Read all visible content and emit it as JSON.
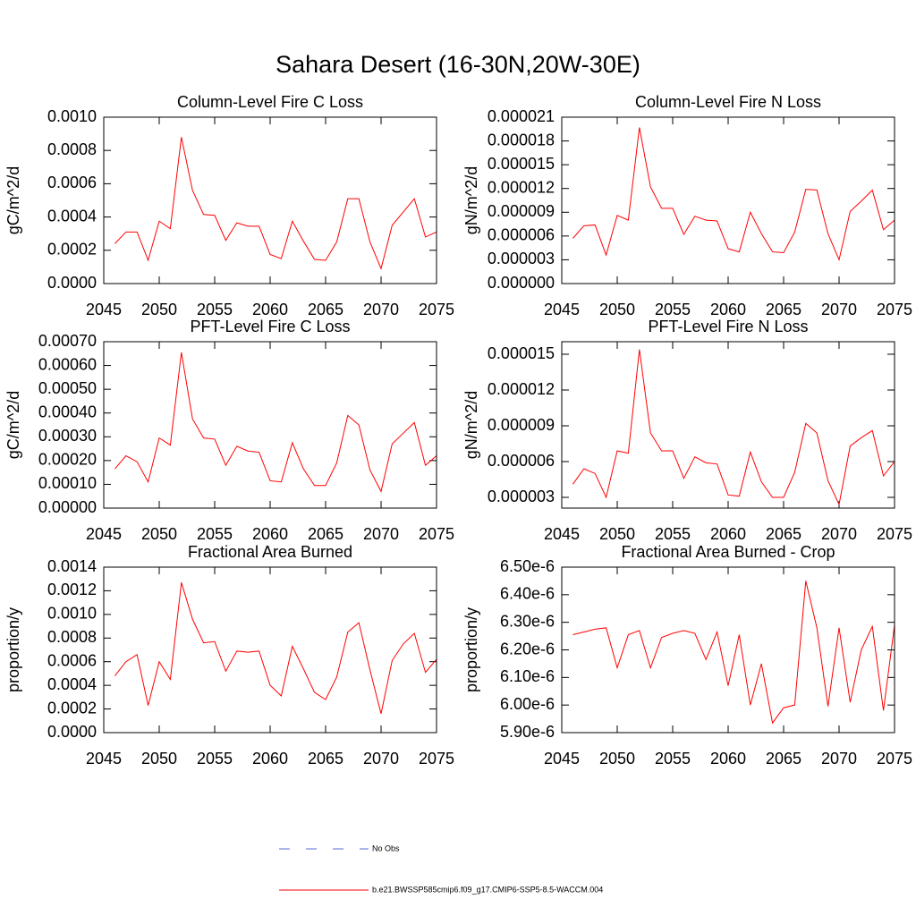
{
  "title": "Sahara Desert (16-30N,20W-30E)",
  "legend": [
    {
      "name": "No Obs",
      "color": "#5a6fd0",
      "dashed": true
    },
    {
      "name": "b.e21.BWSSP585cmip6.f09_g17.CMIP6-SSP5-8.5-WACCM.004",
      "color": "#ff0000",
      "dashed": false
    }
  ],
  "chart_data": [
    {
      "type": "line",
      "title": "Column-Level Fire C Loss",
      "ylabel": "gC/m^2/d",
      "color": "#ff0000",
      "x": [
        2046,
        2047,
        2048,
        2049,
        2050,
        2051,
        2052,
        2053,
        2054,
        2055,
        2056,
        2057,
        2058,
        2059,
        2060,
        2061,
        2062,
        2063,
        2064,
        2065,
        2066,
        2067,
        2068,
        2069,
        2070,
        2071,
        2072,
        2073,
        2074,
        2075
      ],
      "values": [
        0.00024,
        0.00031,
        0.00031,
        0.00014,
        0.000375,
        0.00033,
        0.00088,
        0.00056,
        0.000415,
        0.00041,
        0.00026,
        0.000365,
        0.000345,
        0.000345,
        0.000175,
        0.00015,
        0.000375,
        0.000255,
        0.000145,
        0.00014,
        0.00025,
        0.00051,
        0.00051,
        0.00025,
        9e-05,
        0.00035,
        0.00043,
        0.00051,
        0.00028,
        0.00031
      ],
      "xlim": [
        2045,
        2075
      ],
      "xticks": [
        2045,
        2050,
        2055,
        2060,
        2065,
        2070,
        2075
      ],
      "ylim": [
        0,
        0.001
      ],
      "yticks": [
        {
          "value": 0,
          "label": "0.0000"
        },
        {
          "value": 0.0002,
          "label": "0.0002"
        },
        {
          "value": 0.0004,
          "label": "0.0004"
        },
        {
          "value": 0.0006,
          "label": "0.0006"
        },
        {
          "value": 0.0008,
          "label": "0.0008"
        },
        {
          "value": 0.001,
          "label": "0.0010"
        }
      ]
    },
    {
      "type": "line",
      "title": "Column-Level Fire N Loss",
      "ylabel": "gN/m^2/d",
      "color": "#ff0000",
      "x": [
        2046,
        2047,
        2048,
        2049,
        2050,
        2051,
        2052,
        2053,
        2054,
        2055,
        2056,
        2057,
        2058,
        2059,
        2060,
        2061,
        2062,
        2063,
        2064,
        2065,
        2066,
        2067,
        2068,
        2069,
        2070,
        2071,
        2072,
        2073,
        2074,
        2075
      ],
      "values": [
        5.7e-06,
        7.3e-06,
        7.4e-06,
        3.6e-06,
        8.6e-06,
        8e-06,
        1.97e-05,
        1.22e-05,
        9.5e-06,
        9.5e-06,
        6.2e-06,
        8.5e-06,
        8e-06,
        7.9e-06,
        4.4e-06,
        4e-06,
        9e-06,
        6.3e-06,
        4e-06,
        3.9e-06,
        6.5e-06,
        1.19e-05,
        1.18e-05,
        6.3e-06,
        3e-06,
        9.1e-06,
        1.04e-05,
        1.18e-05,
        6.8e-06,
        8e-06
      ],
      "xlim": [
        2045,
        2075
      ],
      "xticks": [
        2045,
        2050,
        2055,
        2060,
        2065,
        2070,
        2075
      ],
      "ylim": [
        0,
        2.1e-05
      ],
      "yticks": [
        {
          "value": 0,
          "label": "0.000000"
        },
        {
          "value": 3e-06,
          "label": "0.000003"
        },
        {
          "value": 6e-06,
          "label": "0.000006"
        },
        {
          "value": 9e-06,
          "label": "0.000009"
        },
        {
          "value": 1.2e-05,
          "label": "0.000012"
        },
        {
          "value": 1.5e-05,
          "label": "0.000015"
        },
        {
          "value": 1.8e-05,
          "label": "0.000018"
        },
        {
          "value": 2.1e-05,
          "label": "0.000021"
        }
      ]
    },
    {
      "type": "line",
      "title": "PFT-Level Fire C Loss",
      "ylabel": "gC/m^2/d",
      "color": "#ff0000",
      "x": [
        2046,
        2047,
        2048,
        2049,
        2050,
        2051,
        2052,
        2053,
        2054,
        2055,
        2056,
        2057,
        2058,
        2059,
        2060,
        2061,
        2062,
        2063,
        2064,
        2065,
        2066,
        2067,
        2068,
        2069,
        2070,
        2071,
        2072,
        2073,
        2074,
        2075
      ],
      "values": [
        0.000165,
        0.00022,
        0.000195,
        0.00011,
        0.000295,
        0.000265,
        0.000655,
        0.000375,
        0.000295,
        0.00029,
        0.00018,
        0.00026,
        0.00024,
        0.000235,
        0.000115,
        0.00011,
        0.000275,
        0.000165,
        9.5e-05,
        9.5e-05,
        0.00019,
        0.00039,
        0.00035,
        0.00016,
        7e-05,
        0.00027,
        0.000315,
        0.00036,
        0.00018,
        0.00022
      ],
      "xlim": [
        2045,
        2075
      ],
      "xticks": [
        2045,
        2050,
        2055,
        2060,
        2065,
        2070,
        2075
      ],
      "ylim": [
        0,
        0.0007
      ],
      "yticks": [
        {
          "value": 0,
          "label": "0.00000"
        },
        {
          "value": 0.0001,
          "label": "0.00010"
        },
        {
          "value": 0.0002,
          "label": "0.00020"
        },
        {
          "value": 0.0003,
          "label": "0.00030"
        },
        {
          "value": 0.0004,
          "label": "0.00040"
        },
        {
          "value": 0.0005,
          "label": "0.00050"
        },
        {
          "value": 0.0006,
          "label": "0.00060"
        },
        {
          "value": 0.0007,
          "label": "0.00070"
        }
      ]
    },
    {
      "type": "line",
      "title": "PFT-Level Fire N Loss",
      "ylabel": "gN/m^2/d",
      "color": "#ff0000",
      "x": [
        2046,
        2047,
        2048,
        2049,
        2050,
        2051,
        2052,
        2053,
        2054,
        2055,
        2056,
        2057,
        2058,
        2059,
        2060,
        2061,
        2062,
        2063,
        2064,
        2065,
        2066,
        2067,
        2068,
        2069,
        2070,
        2071,
        2072,
        2073,
        2074,
        2075
      ],
      "values": [
        4.1e-06,
        5.4e-06,
        5e-06,
        3e-06,
        6.9e-06,
        6.7e-06,
        1.54e-05,
        8.4e-06,
        6.9e-06,
        6.9e-06,
        4.6e-06,
        6.4e-06,
        5.9e-06,
        5.8e-06,
        3.2e-06,
        3.1e-06,
        6.8e-06,
        4.3e-06,
        3e-06,
        3e-06,
        5.1e-06,
        9.2e-06,
        8.4e-06,
        4.4e-06,
        2.4e-06,
        7.3e-06,
        8e-06,
        8.6e-06,
        4.8e-06,
        6e-06
      ],
      "xlim": [
        2045,
        2075
      ],
      "xticks": [
        2045,
        2050,
        2055,
        2060,
        2065,
        2070,
        2075
      ],
      "ylim": [
        2.1e-06,
        1.605e-05
      ],
      "yticks": [
        {
          "value": 3e-06,
          "label": "0.000003"
        },
        {
          "value": 6e-06,
          "label": "0.000006"
        },
        {
          "value": 9e-06,
          "label": "0.000009"
        },
        {
          "value": 1.2e-05,
          "label": "0.000012"
        },
        {
          "value": 1.5e-05,
          "label": "0.000015"
        }
      ]
    },
    {
      "type": "line",
      "title": "Fractional Area Burned",
      "ylabel": "proportion/y",
      "color": "#ff0000",
      "x": [
        2046,
        2047,
        2048,
        2049,
        2050,
        2051,
        2052,
        2053,
        2054,
        2055,
        2056,
        2057,
        2058,
        2059,
        2060,
        2061,
        2062,
        2063,
        2064,
        2065,
        2066,
        2067,
        2068,
        2069,
        2070,
        2071,
        2072,
        2073,
        2074,
        2075
      ],
      "values": [
        0.00048,
        0.0006,
        0.00066,
        0.00023,
        0.0006,
        0.00045,
        0.00127,
        0.00096,
        0.00076,
        0.00077,
        0.00052,
        0.00069,
        0.00068,
        0.00069,
        0.0004,
        0.00031,
        0.00073,
        0.00054,
        0.00034,
        0.00028,
        0.00047,
        0.00085,
        0.00093,
        0.00053,
        0.00016,
        0.00061,
        0.00075,
        0.00084,
        0.00051,
        0.00062
      ],
      "xlim": [
        2045,
        2075
      ],
      "xticks": [
        2045,
        2050,
        2055,
        2060,
        2065,
        2070,
        2075
      ],
      "ylim": [
        0,
        0.0014
      ],
      "yticks": [
        {
          "value": 0,
          "label": "0.0000"
        },
        {
          "value": 0.0002,
          "label": "0.0002"
        },
        {
          "value": 0.0004,
          "label": "0.0004"
        },
        {
          "value": 0.0006,
          "label": "0.0006"
        },
        {
          "value": 0.0008,
          "label": "0.0008"
        },
        {
          "value": 0.001,
          "label": "0.0010"
        },
        {
          "value": 0.0012,
          "label": "0.0012"
        },
        {
          "value": 0.0014,
          "label": "0.0014"
        }
      ]
    },
    {
      "type": "line",
      "title": "Fractional Area Burned - Crop",
      "ylabel": "proportion/y",
      "color": "#ff0000",
      "x": [
        2046,
        2047,
        2048,
        2049,
        2050,
        2051,
        2052,
        2053,
        2054,
        2055,
        2056,
        2057,
        2058,
        2059,
        2060,
        2061,
        2062,
        2063,
        2064,
        2065,
        2066,
        2067,
        2068,
        2069,
        2070,
        2071,
        2072,
        2073,
        2074,
        2075
      ],
      "values": [
        6.255e-06,
        6.265e-06,
        6.275e-06,
        6.28e-06,
        6.135e-06,
        6.255e-06,
        6.27e-06,
        6.135e-06,
        6.245e-06,
        6.26e-06,
        6.27e-06,
        6.26e-06,
        6.165e-06,
        6.265e-06,
        6.07e-06,
        6.255e-06,
        6e-06,
        6.15e-06,
        5.935e-06,
        5.99e-06,
        6e-06,
        6.45e-06,
        6.28e-06,
        5.995e-06,
        6.28e-06,
        6.01e-06,
        6.2e-06,
        6.285e-06,
        5.98e-06,
        6.29e-06
      ],
      "xlim": [
        2045,
        2075
      ],
      "xticks": [
        2045,
        2050,
        2055,
        2060,
        2065,
        2070,
        2075
      ],
      "ylim": [
        5.9e-06,
        6.5e-06
      ],
      "yticks": [
        {
          "value": 5.9e-06,
          "label": "5.90e-6"
        },
        {
          "value": 6e-06,
          "label": "6.00e-6"
        },
        {
          "value": 6.1e-06,
          "label": "6.10e-6"
        },
        {
          "value": 6.2e-06,
          "label": "6.20e-6"
        },
        {
          "value": 6.3e-06,
          "label": "6.30e-6"
        },
        {
          "value": 6.4e-06,
          "label": "6.40e-6"
        },
        {
          "value": 6.5e-06,
          "label": "6.50e-6"
        }
      ]
    }
  ]
}
